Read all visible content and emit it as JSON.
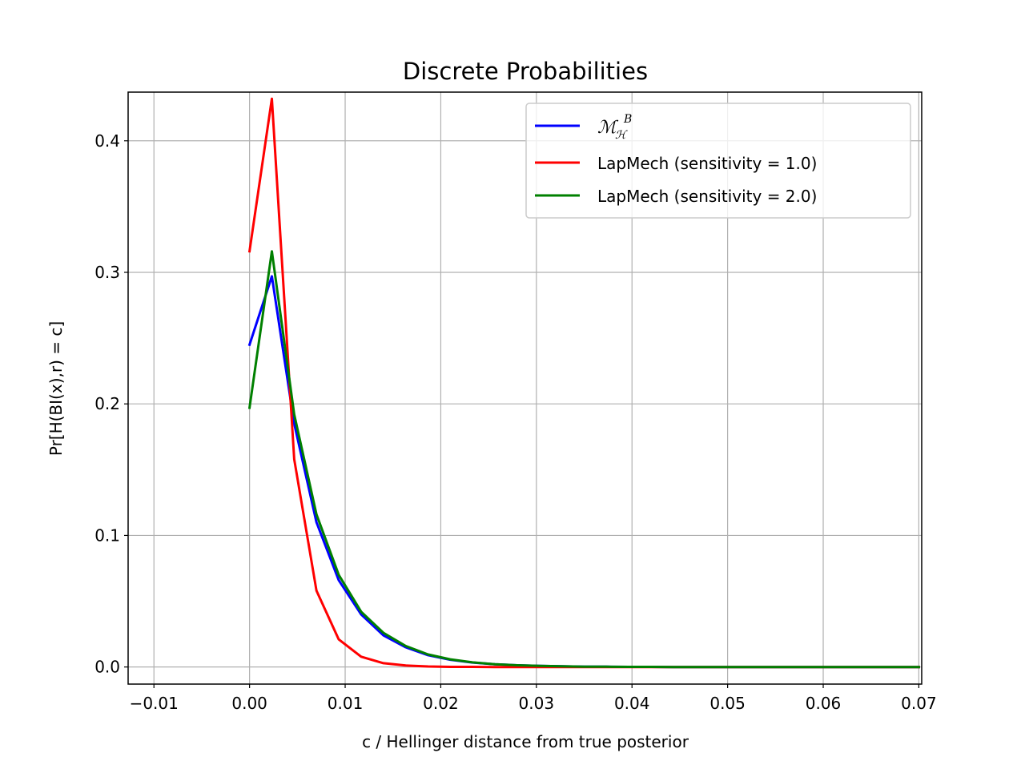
{
  "chart_data": {
    "type": "line",
    "title": "Discrete Probabilities",
    "xlabel": "c / Hellinger distance from true posterior",
    "ylabel": "Pr[H(BI(x),r) = c]",
    "xlim": [
      -0.0127,
      0.0703
    ],
    "ylim": [
      -0.013,
      0.437
    ],
    "xticks": [
      -0.01,
      0.0,
      0.01,
      0.02,
      0.03,
      0.04,
      0.05,
      0.06,
      0.07
    ],
    "xtick_labels": [
      "−0.01",
      "0.00",
      "0.01",
      "0.02",
      "0.03",
      "0.04",
      "0.05",
      "0.06",
      "0.07"
    ],
    "yticks": [
      0.0,
      0.1,
      0.2,
      0.3,
      0.4
    ],
    "ytick_labels": [
      "0.0",
      "0.1",
      "0.2",
      "0.3",
      "0.4"
    ],
    "grid": true,
    "legend_position": "top-right",
    "x": [
      0.0,
      0.00233,
      0.00467,
      0.007,
      0.00933,
      0.01167,
      0.014,
      0.01633,
      0.01867,
      0.021,
      0.02333,
      0.02567,
      0.028,
      0.03033,
      0.03267,
      0.035,
      0.03733,
      0.03967,
      0.042,
      0.04433,
      0.04667,
      0.049,
      0.05133,
      0.05367,
      0.056,
      0.05833,
      0.06067,
      0.063,
      0.06533,
      0.06767,
      0.07
    ],
    "series": [
      {
        "name": "ℳℋ^B",
        "color": "#0000ff",
        "values": [
          0.245,
          0.297,
          0.185,
          0.11,
          0.066,
          0.04,
          0.024,
          0.015,
          0.009,
          0.0055,
          0.0034,
          0.0021,
          0.0013,
          0.0008,
          0.0005,
          0.0003,
          0.0002,
          0.0001,
          0.0001,
          0.0,
          0.0,
          0.0,
          0.0,
          0.0,
          0.0,
          0.0,
          0.0,
          0.0,
          0.0,
          0.0,
          0.0
        ]
      },
      {
        "name": "LapMech (sensitivity = 1.0)",
        "color": "#ff0000",
        "values": [
          0.316,
          0.432,
          0.158,
          0.058,
          0.021,
          0.0078,
          0.0029,
          0.0011,
          0.0004,
          0.0001,
          0.0001,
          0.0,
          0.0,
          0.0,
          0.0,
          0.0,
          0.0,
          0.0,
          0.0,
          0.0,
          0.0,
          0.0,
          0.0,
          0.0,
          0.0,
          0.0,
          0.0,
          0.0,
          0.0,
          0.0,
          0.0
        ]
      },
      {
        "name": "LapMech (sensitivity = 2.0)",
        "color": "#008000",
        "values": [
          0.197,
          0.316,
          0.192,
          0.116,
          0.07,
          0.042,
          0.026,
          0.016,
          0.0095,
          0.0058,
          0.0035,
          0.0021,
          0.0013,
          0.0008,
          0.0005,
          0.0003,
          0.0002,
          0.0001,
          0.0001,
          0.0,
          0.0,
          0.0,
          0.0,
          0.0,
          0.0,
          0.0,
          0.0,
          0.0,
          0.0,
          0.0,
          0.0
        ]
      }
    ]
  }
}
